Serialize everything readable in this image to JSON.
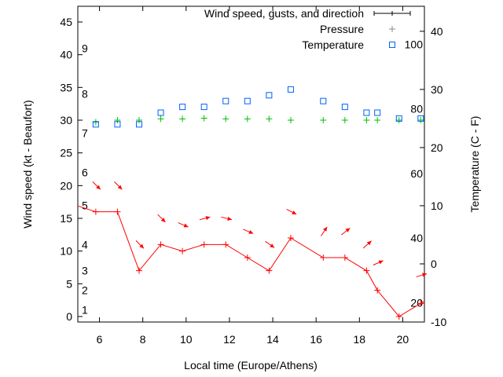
{
  "chart_data": {
    "type": "line",
    "xlabel": "Local time (Europe/Athens)",
    "ylabel": "Wind speed (kt - Beaufort)",
    "y2label": "Temperature (C - F)",
    "xlim": [
      5,
      21
    ],
    "ylim": [
      -0.84,
      47.4
    ],
    "y2lim": [
      -10,
      44.3
    ],
    "xticks": [
      6,
      8,
      10,
      12,
      14,
      16,
      18,
      20
    ],
    "yticks": [
      0,
      5,
      10,
      15,
      20,
      25,
      30,
      35,
      40,
      45
    ],
    "y2ticks": [
      -10,
      0,
      10,
      20,
      30,
      40
    ],
    "grid": false,
    "legend_position": "top-right",
    "legend": [
      {
        "label": "Wind speed, gusts, and direction",
        "color": "#000000",
        "marker": "errorbar"
      },
      {
        "label": "Pressure",
        "color": "#888888",
        "marker": "plus"
      },
      {
        "label": "Temperature",
        "color": "#0060ff",
        "marker": "square"
      }
    ],
    "beaufort_labels": [
      {
        "label": "1",
        "kt": 1
      },
      {
        "label": "2",
        "kt": 4
      },
      {
        "label": "3",
        "kt": 7
      },
      {
        "label": "4",
        "kt": 11
      },
      {
        "label": "5",
        "kt": 17
      },
      {
        "label": "6",
        "kt": 22
      },
      {
        "label": "7",
        "kt": 28
      },
      {
        "label": "8",
        "kt": 34
      },
      {
        "label": "9",
        "kt": 41
      }
    ],
    "fahrenheit_labels": [
      {
        "label": "20",
        "f": 20
      },
      {
        "label": "40",
        "f": 40
      },
      {
        "label": "60",
        "f": 60
      },
      {
        "label": "80",
        "f": 80
      },
      {
        "label": "100",
        "f": 100
      }
    ],
    "x": [
      5.83,
      6.83,
      7.83,
      8.83,
      9.83,
      10.83,
      11.83,
      12.83,
      13.83,
      14.83,
      16.33,
      17.33,
      18.33,
      18.83,
      19.83,
      20.83
    ],
    "series": [
      {
        "name": "Wind speed",
        "axis": "y",
        "color": "#ff0000",
        "values": [
          16,
          16,
          7,
          11,
          10,
          11,
          11,
          9,
          7,
          12,
          9,
          9,
          7,
          4,
          0,
          2
        ],
        "line_start": 16.9,
        "line_end": 2.3
      },
      {
        "name": "Wind direction (from, deg)",
        "axis": "y",
        "color": "#ff0000",
        "arrow_kt": [
          20,
          20,
          11,
          15,
          14,
          15,
          15,
          13,
          11,
          16,
          13,
          13,
          11,
          8.2,
          null,
          6.3
        ],
        "values": [
          315,
          315,
          315,
          315,
          293,
          255,
          284,
          293,
          305,
          297,
          214,
          232,
          228,
          246,
          null,
          253
        ]
      },
      {
        "name": "Pressure",
        "axis": "y",
        "color": "#00c000",
        "values": [
          29.7,
          30,
          30,
          30.2,
          30.2,
          30.3,
          30.2,
          30.2,
          30.2,
          30,
          30,
          30,
          30,
          30,
          30,
          30
        ]
      },
      {
        "name": "Temperature",
        "axis": "y2",
        "color": "#0060ff",
        "values": [
          24,
          24,
          24,
          26,
          27,
          27,
          28,
          28,
          29,
          30,
          28,
          27,
          26,
          26,
          25,
          25
        ]
      }
    ]
  }
}
